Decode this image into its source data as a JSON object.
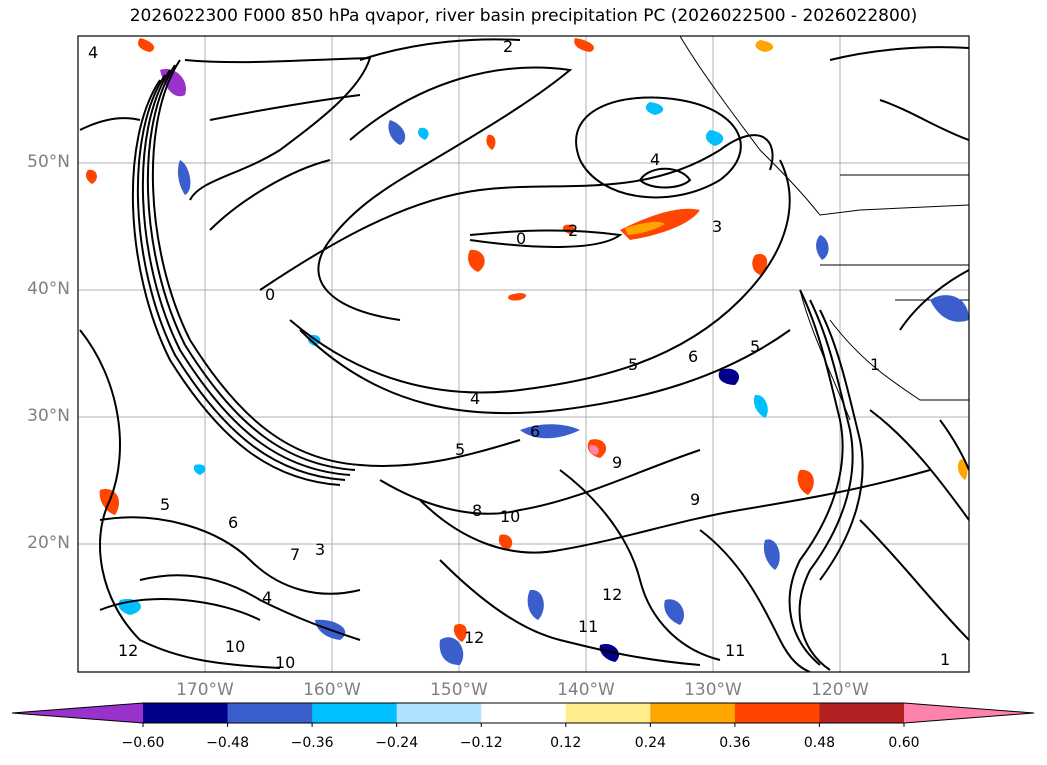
{
  "title": "2026022300 F000 850 hPa qvapor, river basin precipitation PC (2026022500 - 2026022800)",
  "map": {
    "lat_labels": [
      "50°N",
      "40°N",
      "30°N",
      "20°N"
    ],
    "lon_labels": [
      "170°W",
      "160°W",
      "150°W",
      "140°W",
      "130°W",
      "120°W"
    ],
    "grid": true,
    "contour_labels": [
      "4",
      "2",
      "2",
      "0",
      "3",
      "5",
      "6",
      "4",
      "5",
      "6",
      "7",
      "8",
      "9",
      "10",
      "11",
      "12",
      "1",
      "3"
    ]
  },
  "colorbar": {
    "orientation": "horizontal",
    "extend": "both",
    "colors": [
      "#9932cc",
      "#00008b",
      "#3a5fcd",
      "#00bfff",
      "#b0e2ff",
      "#ffffff",
      "#ffec8b",
      "#ffa500",
      "#ff4500",
      "#b22222",
      "#ff82ab"
    ],
    "ticks": [
      "−0.60",
      "−0.48",
      "−0.36",
      "−0.24",
      "−0.12",
      "0.12",
      "0.24",
      "0.36",
      "0.48",
      "0.60"
    ]
  }
}
